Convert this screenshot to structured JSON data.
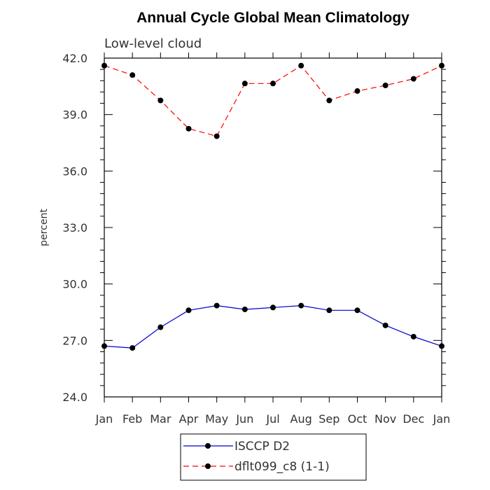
{
  "chart_data": {
    "type": "line",
    "title": "Annual Cycle Global Mean Climatology",
    "subtitle": "Low-level cloud",
    "xlabel": "",
    "ylabel": "percent",
    "categories": [
      "Jan",
      "Feb",
      "Mar",
      "Apr",
      "May",
      "Jun",
      "Jul",
      "Aug",
      "Sep",
      "Oct",
      "Nov",
      "Dec",
      "Jan"
    ],
    "ylim": [
      24.0,
      42.0
    ],
    "yticks": [
      "24.0",
      "27.0",
      "30.0",
      "33.0",
      "36.0",
      "39.0",
      "42.0"
    ],
    "series": [
      {
        "name": "ISCCP D2",
        "color": "#0000cc",
        "dash": "solid",
        "values": [
          26.7,
          26.6,
          27.7,
          28.6,
          28.85,
          28.65,
          28.75,
          28.85,
          28.6,
          28.6,
          27.8,
          27.2,
          26.7
        ]
      },
      {
        "name": "dflt099_c8 (1-1)",
        "color": "#ff0000",
        "dash": "dashed",
        "values": [
          41.6,
          41.1,
          39.75,
          38.25,
          37.85,
          40.65,
          40.65,
          41.6,
          39.75,
          40.25,
          40.55,
          40.9,
          41.6
        ]
      }
    ],
    "legend_position": "bottom-center"
  }
}
